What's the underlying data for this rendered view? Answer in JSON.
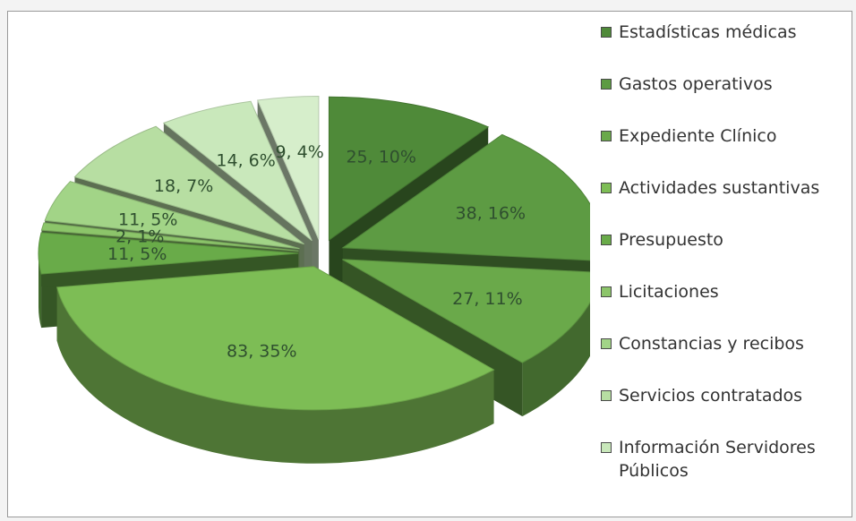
{
  "chart_data": {
    "type": "pie",
    "style": "3d-exploded",
    "title": "",
    "legend_position": "right",
    "slices": [
      {
        "name": "Estadísticas médicas",
        "value": 25,
        "label": "25, 10%",
        "color": "#4f8a39"
      },
      {
        "name": "Gastos operativos",
        "value": 38,
        "label": "38, 16%",
        "color": "#5d9b43"
      },
      {
        "name": "Expediente Clínico",
        "value": 27,
        "label": "27, 11%",
        "color": "#6aa94a"
      },
      {
        "name": "Actividades sustantivas",
        "value": 83,
        "label": "83, 35%",
        "color": "#7dbd55"
      },
      {
        "name": "Presupuesto",
        "value": 11,
        "label": "11, 5%",
        "color": "#69ab49"
      },
      {
        "name": "Licitaciones",
        "value": 2,
        "label": "2, 1%",
        "color": "#8cc56a"
      },
      {
        "name": "Constancias y recibos",
        "value": 11,
        "label": "11, 5%",
        "color": "#a2d487"
      },
      {
        "name": "Servicios contratados",
        "value": 18,
        "label": "18, 7%",
        "color": "#b7dea2"
      },
      {
        "name": "Información Servidores Públicos",
        "value": 14,
        "label": "14, 6%",
        "color": "#c9e8bb"
      },
      {
        "name": "",
        "value": 9,
        "label": "9, 4%",
        "color": "#d6eecb"
      }
    ]
  },
  "legend": {
    "items": [
      {
        "label": "Estadísticas médicas",
        "color": "#4f8a39"
      },
      {
        "label": "Gastos operativos",
        "color": "#5d9b43"
      },
      {
        "label": "Expediente Clínico",
        "color": "#6aa94a"
      },
      {
        "label": "Actividades sustantivas",
        "color": "#7dbd55"
      },
      {
        "label": "Presupuesto",
        "color": "#69ab49"
      },
      {
        "label": "Licitaciones",
        "color": "#8cc56a"
      },
      {
        "label": "Constancias y recibos",
        "color": "#a2d487"
      },
      {
        "label": "Servicios contratados",
        "color": "#b7dea2"
      },
      {
        "label": "Información Servidores Públicos",
        "color": "#c9e8bb"
      }
    ]
  }
}
